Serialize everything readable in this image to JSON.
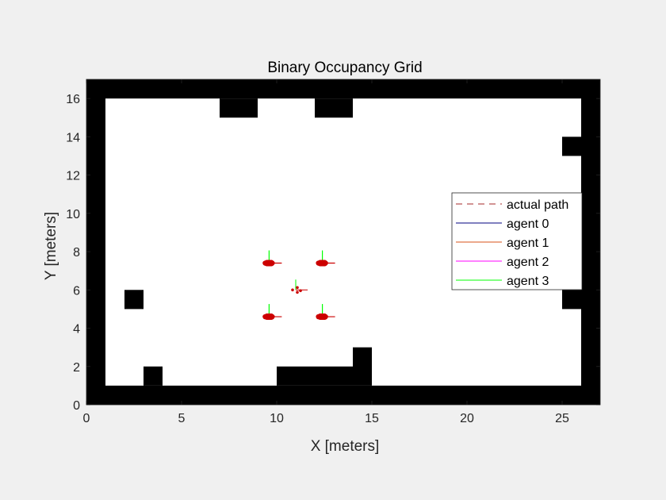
{
  "chart_data": {
    "type": "occupancy-grid",
    "title": "Binary Occupancy Grid",
    "xlabel": "X [meters]",
    "ylabel": "Y [meters]",
    "xlim": [
      0,
      27
    ],
    "ylim": [
      0,
      17
    ],
    "xticks": [
      0,
      5,
      10,
      15,
      20,
      25
    ],
    "yticks": [
      0,
      2,
      4,
      6,
      8,
      10,
      12,
      14,
      16
    ],
    "legend_position": "right",
    "colors": {
      "figure_background": "#f0f0f0",
      "free_space": "#ffffff",
      "occupied": "#000000",
      "agent_marker": "#cc0000",
      "actual_path": "#a52a2a",
      "agent_0": "#000080",
      "agent_1": "#d95319",
      "agent_2": "#ff00ff",
      "agent_3": "#00ff00"
    },
    "legend": [
      {
        "label": "actual path",
        "style": "dashed",
        "color": "#a52a2a"
      },
      {
        "label": "agent 0",
        "style": "solid",
        "color": "#000080"
      },
      {
        "label": "agent 1",
        "style": "solid",
        "color": "#d95319"
      },
      {
        "label": "agent 2",
        "style": "solid",
        "color": "#ff00ff"
      },
      {
        "label": "agent 3",
        "style": "solid",
        "color": "#00ff00"
      }
    ],
    "obstacles": [
      {
        "x0": 0,
        "y0": 0,
        "x1": 27,
        "y1": 1
      },
      {
        "x0": 0,
        "y0": 16,
        "x1": 27,
        "y1": 17
      },
      {
        "x0": 0,
        "y0": 0,
        "x1": 1,
        "y1": 17
      },
      {
        "x0": 26,
        "y0": 0,
        "x1": 27,
        "y1": 17
      },
      {
        "x0": 7,
        "y0": 15,
        "x1": 9,
        "y1": 16
      },
      {
        "x0": 12,
        "y0": 15,
        "x1": 14,
        "y1": 16
      },
      {
        "x0": 25,
        "y0": 13,
        "x1": 26,
        "y1": 14
      },
      {
        "x0": 25,
        "y0": 5,
        "x1": 26,
        "y1": 6
      },
      {
        "x0": 2,
        "y0": 5,
        "x1": 3,
        "y1": 6
      },
      {
        "x0": 3,
        "y0": 1,
        "x1": 4,
        "y1": 2
      },
      {
        "x0": 10,
        "y0": 1,
        "x1": 14,
        "y1": 2
      },
      {
        "x0": 14,
        "y0": 1,
        "x1": 15,
        "y1": 3
      }
    ],
    "agents": [
      {
        "name": "agent 0",
        "x": 9.6,
        "y": 7.4
      },
      {
        "name": "agent 1",
        "x": 12.4,
        "y": 7.4
      },
      {
        "name": "agent 2",
        "x": 9.6,
        "y": 4.6
      },
      {
        "name": "agent 3",
        "x": 12.4,
        "y": 4.6
      }
    ],
    "center_marker": {
      "x": 11.0,
      "y": 6.0
    }
  }
}
